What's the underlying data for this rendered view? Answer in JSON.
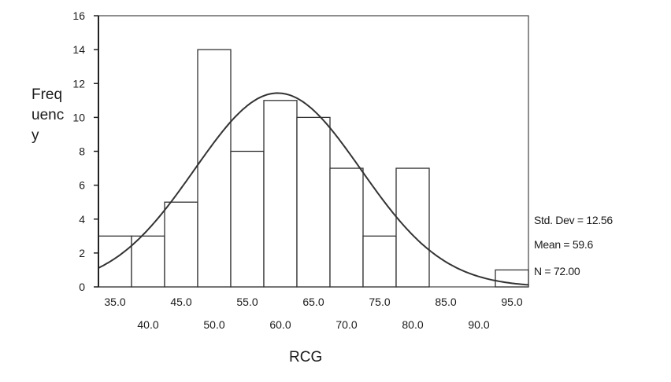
{
  "chart_data": {
    "type": "bar",
    "ylabel": "Frequency",
    "xlabel": "RCG",
    "ylim": [
      0,
      16
    ],
    "xlim": [
      32.5,
      97.5
    ],
    "yticks": [
      "0",
      "2",
      "4",
      "6",
      "8",
      "10",
      "12",
      "14",
      "16"
    ],
    "xticks_upper": [
      "35.0",
      "45.0",
      "55.0",
      "65.0",
      "75.0",
      "85.0",
      "95.0"
    ],
    "xticks_lower": [
      "40.0",
      "50.0",
      "60.0",
      "70.0",
      "80.0",
      "90.0"
    ],
    "bin_centers": [
      35,
      40,
      45,
      50,
      55,
      60,
      65,
      70,
      75,
      80,
      85,
      90,
      95
    ],
    "values": [
      3,
      3,
      5,
      14,
      8,
      11,
      10,
      7,
      3,
      7,
      0,
      0,
      1
    ],
    "bin_width": 5,
    "normal_curve": {
      "mean": 59.6,
      "std_dev": 12.56,
      "n": 72
    },
    "stats": {
      "std_dev": "Std. Dev = 12.56",
      "mean": "Mean = 59.6",
      "n": "N = 72.00"
    }
  }
}
